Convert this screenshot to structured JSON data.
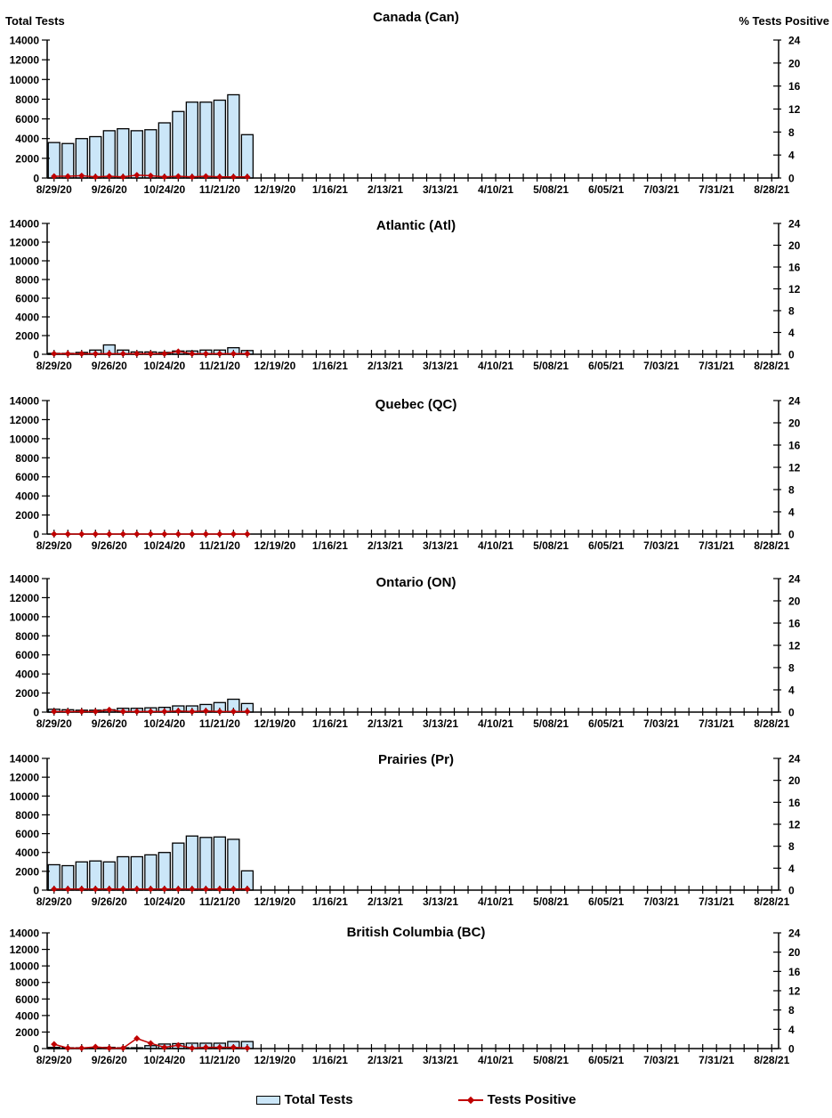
{
  "axis_titles": {
    "left": "Total Tests",
    "right": "% Tests Positive"
  },
  "legend": {
    "items": [
      {
        "label": "Total Tests",
        "marker": "bar-swatch"
      },
      {
        "label": "Tests Positive",
        "marker": "line-diamond-marker"
      }
    ]
  },
  "colors": {
    "background": "#FFFFFF",
    "bar_fill": "#CBE6F8",
    "bar_border": "#000000",
    "line": "#C00000",
    "axis": "#000000",
    "text": "#000000"
  },
  "axes": {
    "left": {
      "ticks": [
        0,
        2000,
        4000,
        6000,
        8000,
        10000,
        12000,
        14000
      ],
      "max": 14000
    },
    "right": {
      "ticks": [
        0,
        4,
        8,
        12,
        16,
        20,
        24
      ],
      "max": 24
    },
    "x": {
      "labels": [
        "8/29/20",
        "9/26/20",
        "10/24/20",
        "11/21/20",
        "12/19/20",
        "1/16/21",
        "2/13/21",
        "3/13/21",
        "4/10/21",
        "5/08/21",
        "6/05/21",
        "7/03/21",
        "7/31/21",
        "8/28/21"
      ],
      "weeks_total": 53,
      "label_every_n_weeks": 4
    }
  },
  "chart_data": [
    {
      "type": "bar",
      "title": "Canada (Can)",
      "xlabel": "",
      "ylabel_left": "Total Tests",
      "ylabel_right": "% Tests Positive",
      "ylim_left": [
        0,
        14000
      ],
      "ylim_right": [
        0,
        24
      ],
      "categories": [
        "8/29/20",
        "9/5/20",
        "9/12/20",
        "9/19/20",
        "9/26/20",
        "10/3/20",
        "10/10/20",
        "10/17/20",
        "10/24/20",
        "10/31/20",
        "11/7/20",
        "11/14/20",
        "11/21/20",
        "11/28/20",
        "12/5/20"
      ],
      "series": [
        {
          "name": "Total Tests",
          "type": "bar",
          "axis": "left",
          "values": [
            3600,
            3500,
            4000,
            4200,
            4800,
            5000,
            4800,
            4900,
            5600,
            6750,
            7700,
            7700,
            7900,
            8450,
            4400
          ]
        },
        {
          "name": "Tests Positive",
          "type": "line",
          "axis": "right",
          "values": [
            0.3,
            0.3,
            0.4,
            0.2,
            0.3,
            0.2,
            0.5,
            0.4,
            0.2,
            0.3,
            0.2,
            0.3,
            0.2,
            0.2,
            0.2
          ]
        }
      ]
    },
    {
      "type": "bar",
      "title": "Atlantic (Atl)",
      "ylim_left": [
        0,
        14000
      ],
      "ylim_right": [
        0,
        24
      ],
      "categories": [
        "8/29/20",
        "9/5/20",
        "9/12/20",
        "9/19/20",
        "9/26/20",
        "10/3/20",
        "10/10/20",
        "10/17/20",
        "10/24/20",
        "10/31/20",
        "11/7/20",
        "11/14/20",
        "11/21/20",
        "11/28/20",
        "12/5/20"
      ],
      "series": [
        {
          "name": "Total Tests",
          "type": "bar",
          "axis": "left",
          "values": [
            100,
            100,
            200,
            450,
            1000,
            450,
            250,
            250,
            200,
            350,
            350,
            450,
            450,
            700,
            400
          ]
        },
        {
          "name": "Tests Positive",
          "type": "line",
          "axis": "right",
          "values": [
            0.1,
            0.1,
            0.1,
            0.1,
            0.1,
            0.1,
            0.1,
            0.1,
            0.1,
            0.5,
            0.1,
            0.1,
            0.1,
            0.1,
            0.1
          ]
        }
      ]
    },
    {
      "type": "bar",
      "title": "Quebec (QC)",
      "ylim_left": [
        0,
        14000
      ],
      "ylim_right": [
        0,
        24
      ],
      "categories": [
        "8/29/20",
        "9/5/20",
        "9/12/20",
        "9/19/20",
        "9/26/20",
        "10/3/20",
        "10/10/20",
        "10/17/20",
        "10/24/20",
        "10/31/20",
        "11/7/20",
        "11/14/20",
        "11/21/20",
        "11/28/20",
        "12/5/20"
      ],
      "series": [
        {
          "name": "Total Tests",
          "type": "bar",
          "axis": "left",
          "values": [
            0,
            0,
            0,
            0,
            0,
            0,
            0,
            0,
            0,
            0,
            0,
            0,
            0,
            0,
            0
          ]
        },
        {
          "name": "Tests Positive",
          "type": "line",
          "axis": "right",
          "values": [
            0,
            0,
            0,
            0,
            0,
            0,
            0,
            0,
            0,
            0,
            0,
            0,
            0,
            0,
            0
          ]
        }
      ]
    },
    {
      "type": "bar",
      "title": "Ontario (ON)",
      "ylim_left": [
        0,
        14000
      ],
      "ylim_right": [
        0,
        24
      ],
      "categories": [
        "8/29/20",
        "9/5/20",
        "9/12/20",
        "9/19/20",
        "9/26/20",
        "10/3/20",
        "10/10/20",
        "10/17/20",
        "10/24/20",
        "10/31/20",
        "11/7/20",
        "11/14/20",
        "11/21/20",
        "11/28/20",
        "12/5/20"
      ],
      "series": [
        {
          "name": "Total Tests",
          "type": "bar",
          "axis": "left",
          "values": [
            300,
            250,
            200,
            200,
            250,
            400,
            400,
            450,
            500,
            650,
            650,
            800,
            1000,
            1350,
            900
          ]
        },
        {
          "name": "Tests Positive",
          "type": "line",
          "axis": "right",
          "values": [
            0.1,
            0.1,
            0.1,
            0.1,
            0.4,
            0.1,
            0.1,
            0.1,
            0.1,
            0.2,
            0.1,
            0.2,
            0.1,
            0.1,
            0.1
          ]
        }
      ]
    },
    {
      "type": "bar",
      "title": "Prairies (Pr)",
      "ylim_left": [
        0,
        14000
      ],
      "ylim_right": [
        0,
        24
      ],
      "categories": [
        "8/29/20",
        "9/5/20",
        "9/12/20",
        "9/19/20",
        "9/26/20",
        "10/3/20",
        "10/10/20",
        "10/17/20",
        "10/24/20",
        "10/31/20",
        "11/7/20",
        "11/14/20",
        "11/21/20",
        "11/28/20",
        "12/5/20"
      ],
      "series": [
        {
          "name": "Total Tests",
          "type": "bar",
          "axis": "left",
          "values": [
            2700,
            2600,
            3000,
            3100,
            3000,
            3550,
            3550,
            3750,
            4000,
            5000,
            5750,
            5600,
            5650,
            5400,
            2050
          ]
        },
        {
          "name": "Tests Positive",
          "type": "line",
          "axis": "right",
          "values": [
            0.2,
            0.2,
            0.2,
            0.2,
            0.2,
            0.2,
            0.2,
            0.2,
            0.2,
            0.2,
            0.2,
            0.2,
            0.2,
            0.2,
            0.2
          ]
        }
      ]
    },
    {
      "type": "bar",
      "title": "British Columbia (BC)",
      "ylim_left": [
        0,
        14000
      ],
      "ylim_right": [
        0,
        24
      ],
      "categories": [
        "8/29/20",
        "9/5/20",
        "9/12/20",
        "9/19/20",
        "9/26/20",
        "10/3/20",
        "10/10/20",
        "10/17/20",
        "10/24/20",
        "10/31/20",
        "11/7/20",
        "11/14/20",
        "11/21/20",
        "11/28/20",
        "12/5/20"
      ],
      "series": [
        {
          "name": "Total Tests",
          "type": "bar",
          "axis": "left",
          "values": [
            150,
            100,
            100,
            150,
            150,
            100,
            100,
            350,
            550,
            600,
            650,
            650,
            650,
            850,
            850
          ]
        },
        {
          "name": "Tests Positive",
          "type": "line",
          "axis": "right",
          "values": [
            0.9,
            0.1,
            0.1,
            0.35,
            0.1,
            0.1,
            2.1,
            1.1,
            0.25,
            0.7,
            0.1,
            0.25,
            0.25,
            0.25,
            0.1
          ]
        }
      ]
    }
  ]
}
